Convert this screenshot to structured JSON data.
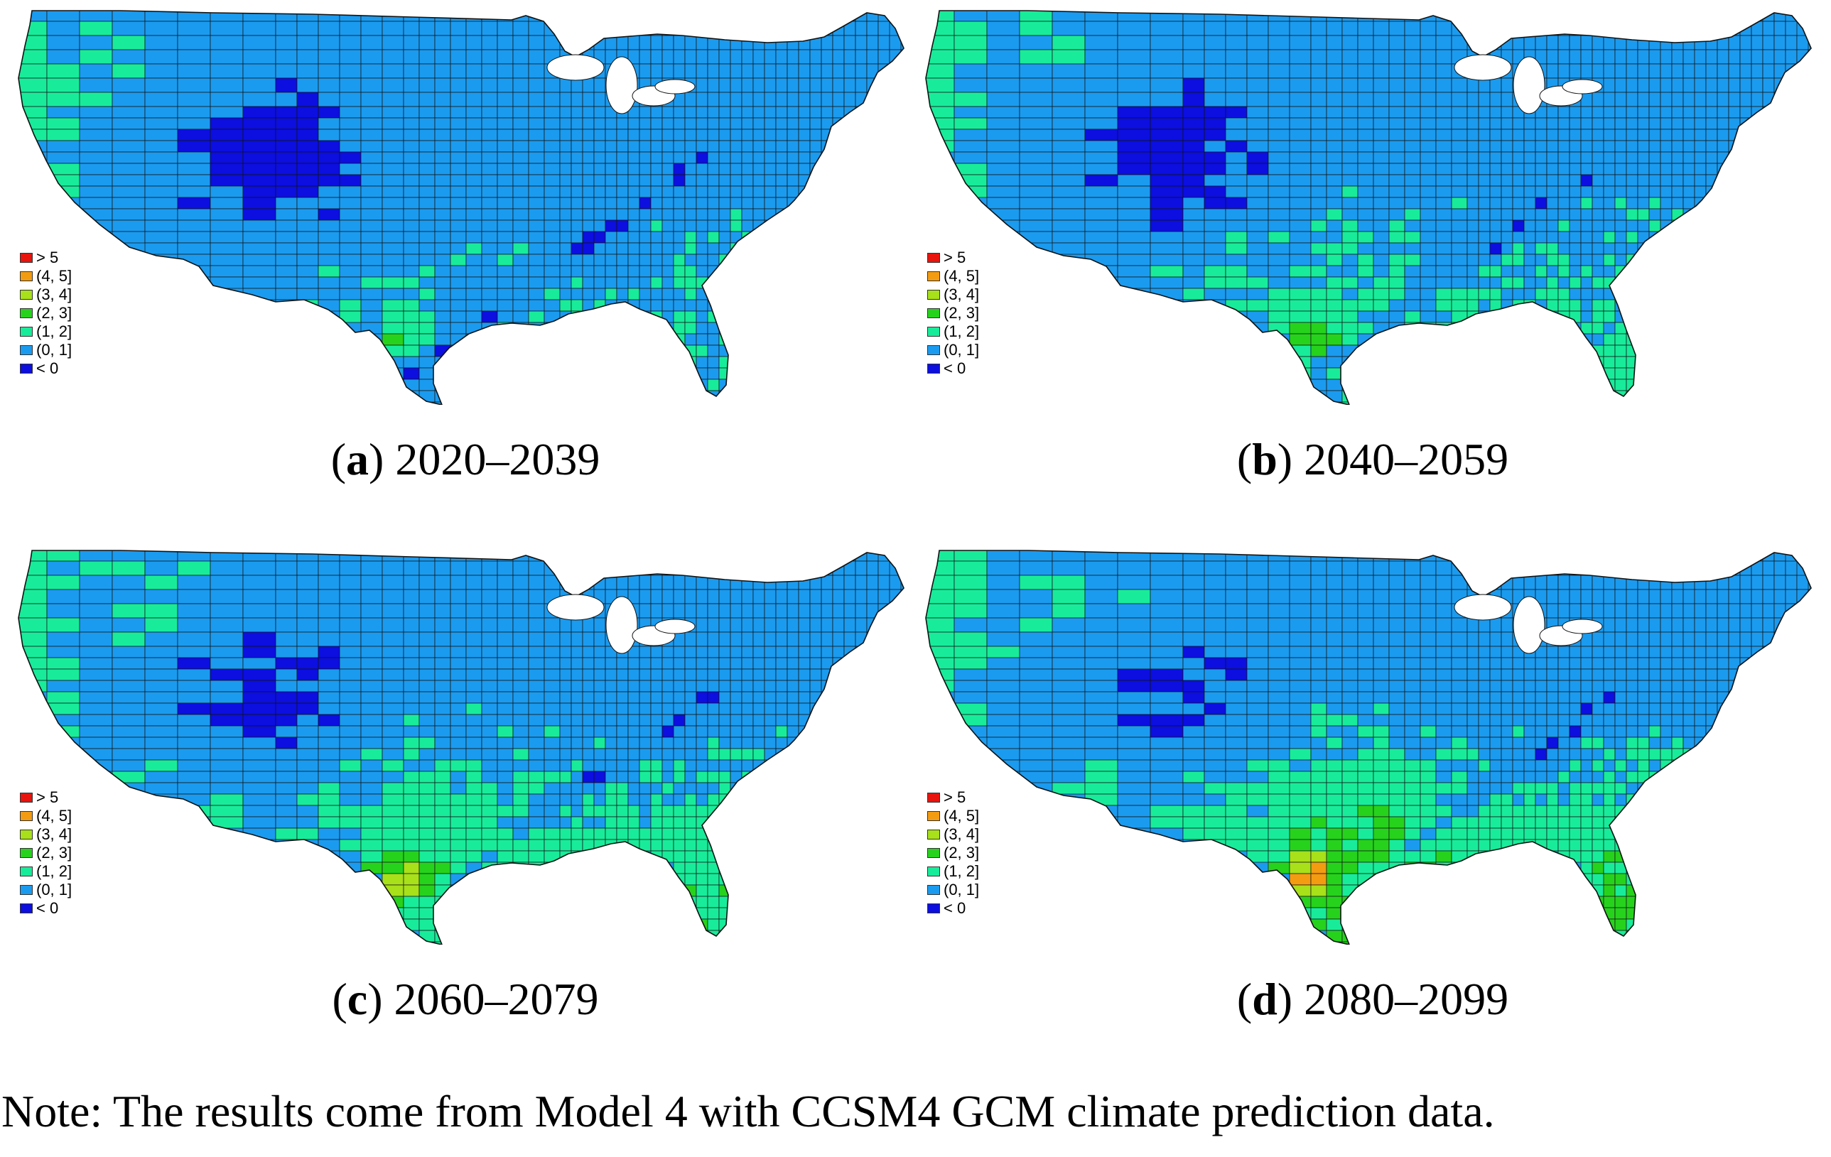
{
  "figure": {
    "note": "Note: The results come from Model 4 with CCSM4 GCM climate prediction data.",
    "legend": [
      {
        "label": "> 5",
        "color": "#e8140e"
      },
      {
        "label": "(4, 5]",
        "color": "#f39c12"
      },
      {
        "label": "(3, 4]",
        "color": "#a8e01a"
      },
      {
        "label": "(2, 3]",
        "color": "#27d21d"
      },
      {
        "label": "(1, 2]",
        "color": "#18ec9a"
      },
      {
        "label": "(0, 1]",
        "color": "#1b9bef"
      },
      {
        "label": "< 0",
        "color": "#0c0fe0"
      }
    ],
    "colors": {
      "ocean": "#ffffff",
      "border": "#111111"
    },
    "panels": [
      {
        "letter": "a",
        "period": "2020–2039"
      },
      {
        "letter": "b",
        "period": "2040–2059"
      },
      {
        "letter": "c",
        "period": "2060–2079"
      },
      {
        "letter": "d",
        "period": "2080–2099"
      }
    ]
  }
}
